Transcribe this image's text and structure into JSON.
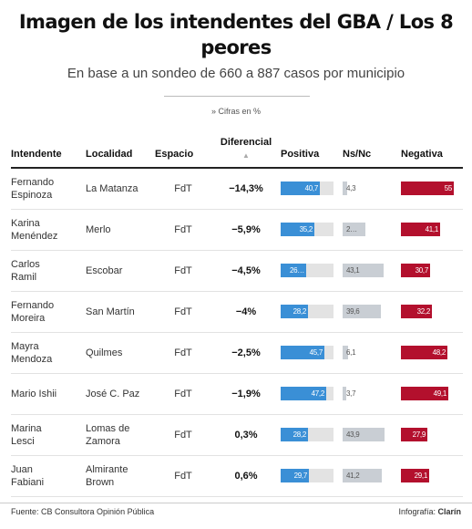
{
  "title": "Imagen de los intendentes del GBA / Los 8 peores",
  "subtitle": "En base a un sondeo de 660 a 887 casos por municipio",
  "note": "» Cifras en %",
  "colors": {
    "positiva": "#3a8fd6",
    "nsnc": "#c9ced4",
    "negativa": "#b3102d",
    "track": "#e3e3e3"
  },
  "headers": {
    "intendente": "Intendente",
    "localidad": "Localidad",
    "espacio": "Espacio",
    "diferencial": "Diferencial",
    "sort_icon": "▲",
    "positiva": "Positiva",
    "nsnc": "Ns/Nc",
    "negativa": "Negativa"
  },
  "chart_data": {
    "type": "table",
    "columns": [
      "Intendente",
      "Localidad",
      "Espacio",
      "Diferencial",
      "Positiva",
      "Ns/Nc",
      "Negativa"
    ],
    "rows": [
      {
        "intendente": "Fernando Espinoza",
        "localidad": "La Matanza",
        "espacio": "FdT",
        "diferencial": "−14,3%",
        "positiva": 40.7,
        "positiva_label": "40,7",
        "nsnc": 4.3,
        "nsnc_label": "4,3",
        "negativa": 55,
        "negativa_label": "55"
      },
      {
        "intendente": "Karina Menéndez",
        "localidad": "Merlo",
        "espacio": "FdT",
        "diferencial": "−5,9%",
        "positiva": 35.2,
        "positiva_label": "35,2",
        "nsnc": 23.7,
        "nsnc_label": "2…",
        "negativa": 41.1,
        "negativa_label": "41,1"
      },
      {
        "intendente": "Carlos Ramil",
        "localidad": "Escobar",
        "espacio": "FdT",
        "diferencial": "−4,5%",
        "positiva": 26.2,
        "positiva_label": "26…",
        "nsnc": 43.1,
        "nsnc_label": "43,1",
        "negativa": 30.7,
        "negativa_label": "30,7"
      },
      {
        "intendente": "Fernando Moreira",
        "localidad": "San Martín",
        "espacio": "FdT",
        "diferencial": "−4%",
        "positiva": 28.2,
        "positiva_label": "28,2",
        "nsnc": 39.6,
        "nsnc_label": "39,6",
        "negativa": 32.2,
        "negativa_label": "32,2"
      },
      {
        "intendente": "Mayra Mendoza",
        "localidad": "Quilmes",
        "espacio": "FdT",
        "diferencial": "−2,5%",
        "positiva": 45.7,
        "positiva_label": "45,7",
        "nsnc": 6.1,
        "nsnc_label": "6,1",
        "negativa": 48.2,
        "negativa_label": "48,2"
      },
      {
        "intendente": "Mario Ishii",
        "localidad": "José C. Paz",
        "espacio": "FdT",
        "diferencial": "−1,9%",
        "positiva": 47.2,
        "positiva_label": "47,2",
        "nsnc": 3.7,
        "nsnc_label": "3,7",
        "negativa": 49.1,
        "negativa_label": "49,1"
      },
      {
        "intendente": "Marina Lesci",
        "localidad": "Lomas de Zamora",
        "espacio": "FdT",
        "diferencial": "0,3%",
        "positiva": 28.2,
        "positiva_label": "28,2",
        "nsnc": 43.9,
        "nsnc_label": "43,9",
        "negativa": 27.9,
        "negativa_label": "27,9"
      },
      {
        "intendente": "Juan Fabiani",
        "localidad": "Almirante Brown",
        "espacio": "FdT",
        "diferencial": "0,6%",
        "positiva": 29.7,
        "positiva_label": "29,7",
        "nsnc": 41.2,
        "nsnc_label": "41,2",
        "negativa": 29.1,
        "negativa_label": "29,1"
      }
    ],
    "scale_max": 55
  },
  "footer": {
    "source": "Fuente: CB Consultora Opinión Pública",
    "credit_prefix": "Infografía: ",
    "credit_brand": "Clarín"
  }
}
